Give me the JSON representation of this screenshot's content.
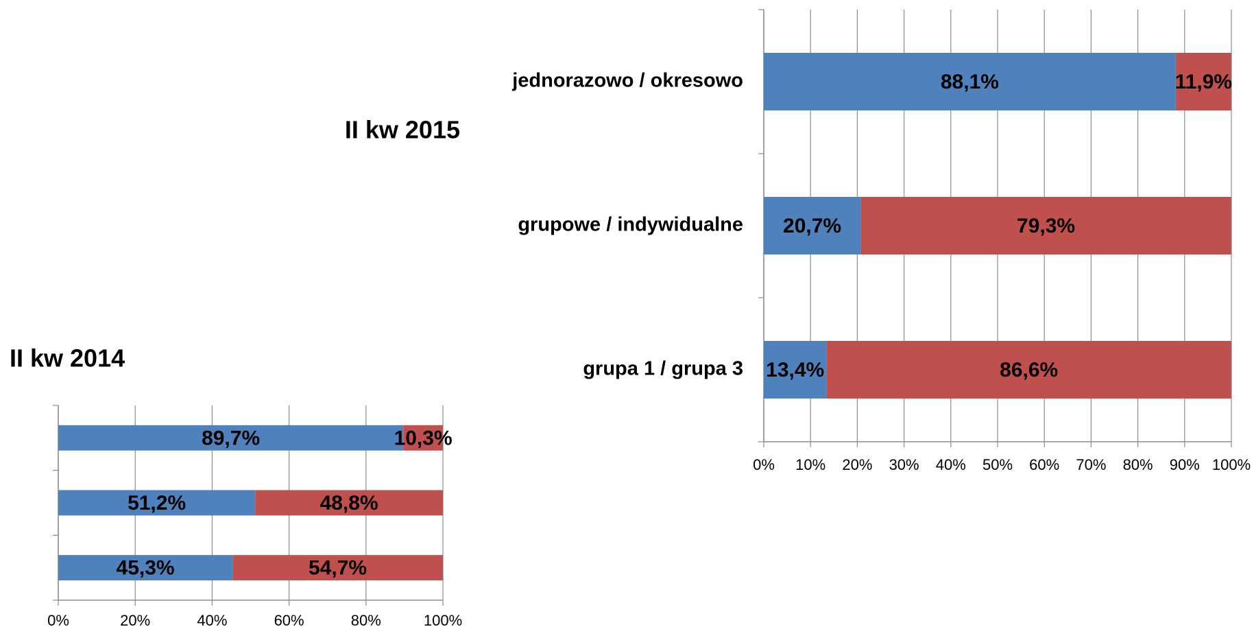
{
  "chart_data": [
    {
      "type": "stacked_bar_horizontal",
      "title": "II kw 2015",
      "categories": [
        "jednorazowo / okresowo",
        "grupowe / indywidualne",
        "grupa 1 / grupa 3"
      ],
      "series": [
        {
          "color": "#4f81bd",
          "values": [
            88.1,
            20.7,
            13.4
          ],
          "value_labels": [
            "88,1%",
            "20,7%",
            "13,4%"
          ]
        },
        {
          "color": "#c0504d",
          "values": [
            11.9,
            79.3,
            86.6
          ],
          "value_labels": [
            "11,9%",
            "79,3%",
            "86,6%"
          ]
        }
      ],
      "xlim": [
        0,
        100
      ],
      "xticks": [
        {
          "value": 0,
          "label": "0%"
        },
        {
          "value": 10,
          "label": "10%"
        },
        {
          "value": 20,
          "label": "20%"
        },
        {
          "value": 30,
          "label": "30%"
        },
        {
          "value": 40,
          "label": "40%"
        },
        {
          "value": 50,
          "label": "50%"
        },
        {
          "value": 60,
          "label": "60%"
        },
        {
          "value": 70,
          "label": "70%"
        },
        {
          "value": 80,
          "label": "80%"
        },
        {
          "value": 90,
          "label": "90%"
        },
        {
          "value": 100,
          "label": "100%"
        }
      ],
      "grid": true
    },
    {
      "type": "stacked_bar_horizontal",
      "title": "II kw 2014",
      "categories": [
        null,
        null,
        null
      ],
      "series": [
        {
          "color": "#4f81bd",
          "values": [
            89.7,
            51.2,
            45.3
          ],
          "value_labels": [
            "89,7%",
            "51,2%",
            "45,3%"
          ]
        },
        {
          "color": "#c0504d",
          "values": [
            10.3,
            48.8,
            54.7
          ],
          "value_labels": [
            "10,3%",
            "48,8%",
            "54,7%"
          ]
        }
      ],
      "xlim": [
        0,
        100
      ],
      "xticks": [
        {
          "value": 0,
          "label": "0%"
        },
        {
          "value": 20,
          "label": "20%"
        },
        {
          "value": 40,
          "label": "40%"
        },
        {
          "value": 60,
          "label": "60%"
        },
        {
          "value": 80,
          "label": "80%"
        },
        {
          "value": 100,
          "label": "100%"
        }
      ],
      "grid": true
    }
  ]
}
